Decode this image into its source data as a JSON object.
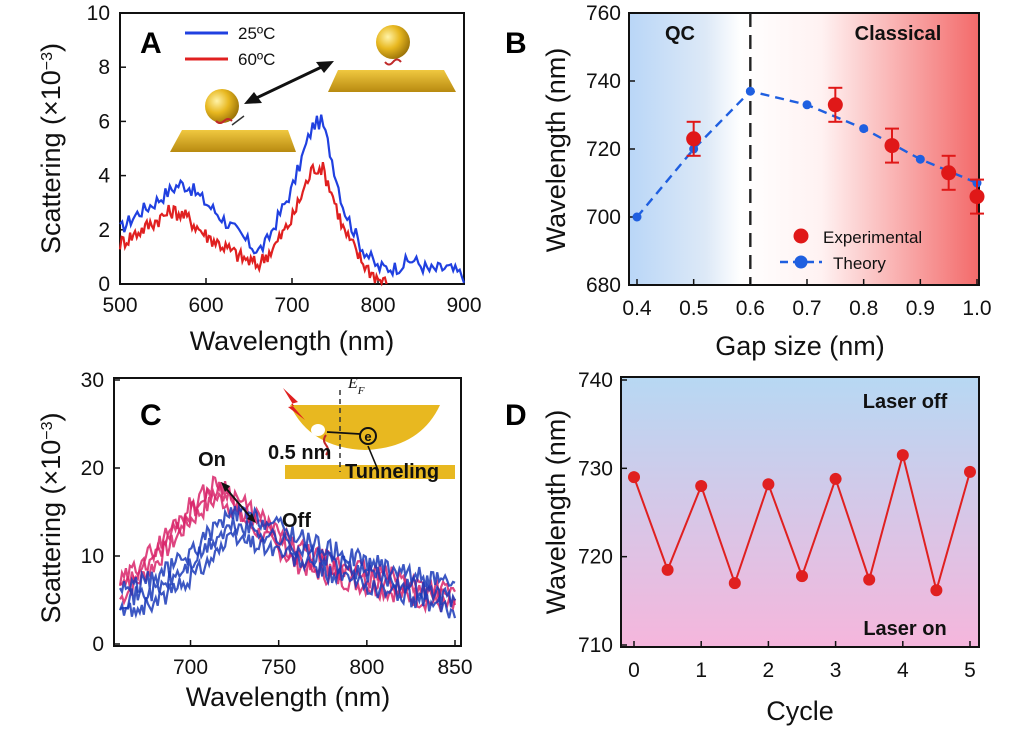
{
  "chart_data": [
    {
      "panel": "A",
      "type": "line",
      "xlabel": "Wavelength (nm)",
      "ylabel": "Scattering (×10",
      "ylabel_exp": "−3",
      "ylabel_close": ")",
      "xlim": [
        500,
        900
      ],
      "ylim": [
        0,
        10
      ],
      "xticks": [
        500,
        600,
        700,
        800,
        900
      ],
      "yticks": [
        0,
        2,
        4,
        6,
        8,
        10
      ],
      "legend_position": "top-left",
      "series": [
        {
          "name": "25ºC",
          "color": "#2040e0",
          "x": [
            500,
            520,
            540,
            560,
            570,
            580,
            600,
            620,
            640,
            660,
            670,
            680,
            700,
            715,
            725,
            735,
            745,
            760,
            780,
            800,
            820,
            840,
            860,
            880,
            900
          ],
          "y": [
            2.0,
            2.6,
            3.0,
            3.5,
            3.7,
            3.6,
            3.0,
            2.4,
            1.8,
            1.2,
            1.5,
            2.2,
            3.5,
            5.0,
            5.9,
            6.0,
            4.8,
            2.8,
            1.4,
            0.6,
            0.6,
            0.9,
            0.5,
            0.6,
            0.3
          ]
        },
        {
          "name": "60ºC",
          "color": "#e02020",
          "x": [
            500,
            520,
            540,
            560,
            570,
            580,
            600,
            620,
            640,
            660,
            680,
            700,
            715,
            725,
            735,
            745,
            760,
            780,
            790,
            800,
            810
          ],
          "y": [
            1.5,
            1.9,
            2.3,
            2.7,
            2.6,
            2.4,
            1.8,
            1.4,
            1.0,
            0.7,
            1.4,
            2.4,
            3.6,
            4.3,
            4.3,
            3.5,
            2.0,
            0.9,
            0.5,
            0.2,
            0.0
          ]
        }
      ]
    },
    {
      "panel": "B",
      "type": "scatter",
      "xlabel": "Gap size (nm)",
      "ylabel": "Wavelength (nm)",
      "xlim": [
        0.4,
        1.0
      ],
      "ylim": [
        680,
        760
      ],
      "xticks": [
        0.4,
        0.5,
        0.6,
        0.7,
        0.8,
        0.9,
        1.0
      ],
      "ytick_labels": [
        "680",
        "700",
        "720",
        "740",
        "760"
      ],
      "xtick_labels": [
        "0.4",
        "0.5",
        "0.6",
        "0.7",
        "0.8",
        "0.9",
        "1.0"
      ],
      "region_labels": [
        "QC",
        "Classical"
      ],
      "divider_x": 0.6,
      "legend_position": "bottom-right",
      "series": [
        {
          "name": "Experimental",
          "color": "#e01818",
          "x": [
            0.5,
            0.75,
            0.85,
            0.95,
            1.0
          ],
          "y": [
            723,
            733,
            721,
            713,
            706
          ],
          "err": [
            5,
            5,
            5,
            5,
            5
          ]
        },
        {
          "name": "Theory",
          "color": "#1f5fe0",
          "x": [
            0.4,
            0.5,
            0.6,
            0.7,
            0.8,
            0.9,
            1.0
          ],
          "y": [
            700,
            720,
            737,
            733,
            726,
            717,
            710
          ]
        }
      ]
    },
    {
      "panel": "C",
      "type": "line",
      "xlabel": "Wavelength (nm)",
      "ylabel": "Scattering (×10",
      "ylabel_exp": "−3",
      "ylabel_close": ")",
      "xlim": [
        660,
        850
      ],
      "ylim": [
        0,
        30
      ],
      "xticks": [
        700,
        750,
        800,
        850
      ],
      "yticks": [
        0,
        10,
        20,
        30
      ],
      "annotations": [
        "On",
        "Off",
        "0.5 nm",
        "Tunneling",
        "E",
        "F"
      ],
      "series": [
        {
          "name": "On",
          "color": "#d8256a",
          "x": [
            660,
            680,
            700,
            715,
            720,
            730,
            745,
            760,
            780,
            800,
            820,
            850
          ],
          "y": [
            6,
            10,
            15,
            17.5,
            17,
            15,
            12.5,
            10,
            8.5,
            7.5,
            6.5,
            5
          ]
        },
        {
          "name": "Off",
          "color": "#1a3ab8",
          "x": [
            660,
            680,
            700,
            715,
            725,
            735,
            750,
            770,
            800,
            820,
            850
          ],
          "y": [
            5,
            6,
            9,
            12,
            13.5,
            13,
            12,
            10,
            8,
            7,
            5
          ]
        }
      ]
    },
    {
      "panel": "D",
      "type": "line",
      "xlabel": "Cycle",
      "ylabel": "Wavelength (nm)",
      "xlim": [
        0,
        5
      ],
      "ylim": [
        710,
        740
      ],
      "xticks": [
        0,
        1,
        2,
        3,
        4,
        5
      ],
      "yticks": [
        710,
        720,
        730,
        740
      ],
      "region_labels": [
        "Laser off",
        "Laser on"
      ],
      "series": [
        {
          "name": "",
          "color": "#e02020",
          "x": [
            0,
            0.5,
            1,
            1.5,
            2,
            2.5,
            3,
            3.5,
            4,
            4.5,
            5
          ],
          "y": [
            729,
            718.5,
            728,
            717,
            728.2,
            717.8,
            728.8,
            717.4,
            731.5,
            716.2,
            729.6
          ]
        }
      ]
    }
  ]
}
